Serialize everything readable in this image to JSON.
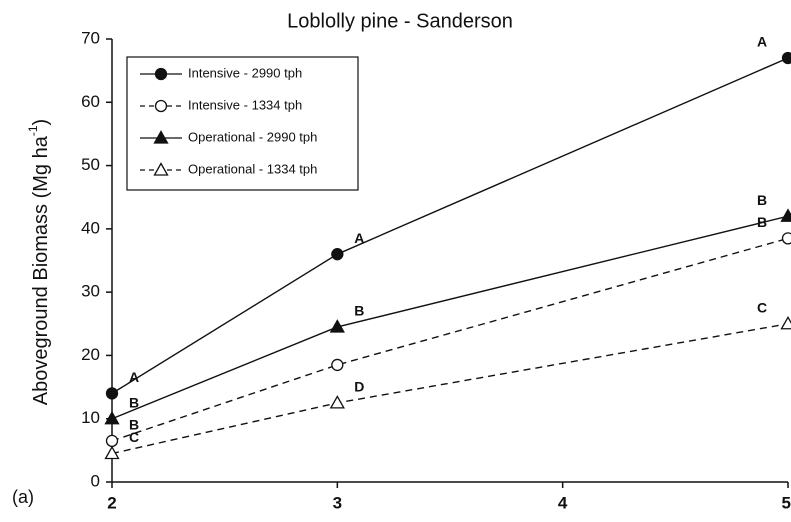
{
  "chart_data": {
    "type": "line",
    "title": "Loblolly pine - Sanderson",
    "ylabel": {
      "main": "Aboveground Biomass (Mg ha",
      "sup": "-1",
      "end": ")"
    },
    "panel": "(a)",
    "x": [
      2,
      3,
      5
    ],
    "xlim": [
      2,
      5
    ],
    "xticks": [
      2,
      3,
      4,
      5
    ],
    "ylim": [
      0,
      70
    ],
    "yticks": [
      0,
      10,
      20,
      30,
      40,
      50,
      60,
      70
    ],
    "legend": "top-left",
    "series": [
      {
        "name": "Intensive - 2990 tph",
        "color": "#111111",
        "marker": "circle",
        "filled": true,
        "dashed": false,
        "values": [
          14,
          36,
          67
        ],
        "letters": [
          "A",
          "A",
          "A"
        ]
      },
      {
        "name": "Intensive - 1334 tph",
        "color": "#111111",
        "marker": "circle",
        "filled": false,
        "dashed": true,
        "values": [
          6.5,
          18.5,
          38.5
        ],
        "letters": [
          "B",
          null,
          "B"
        ]
      },
      {
        "name": "Operational - 2990 tph",
        "color": "#111111",
        "marker": "triangle",
        "filled": true,
        "dashed": false,
        "values": [
          10,
          24.5,
          42
        ],
        "letters": [
          "B",
          "B",
          "B"
        ]
      },
      {
        "name": "Operational - 1334 tph",
        "color": "#111111",
        "marker": "triangle",
        "filled": false,
        "dashed": true,
        "values": [
          4.5,
          12.5,
          25
        ],
        "letters": [
          "C",
          "D",
          "C"
        ]
      }
    ]
  }
}
